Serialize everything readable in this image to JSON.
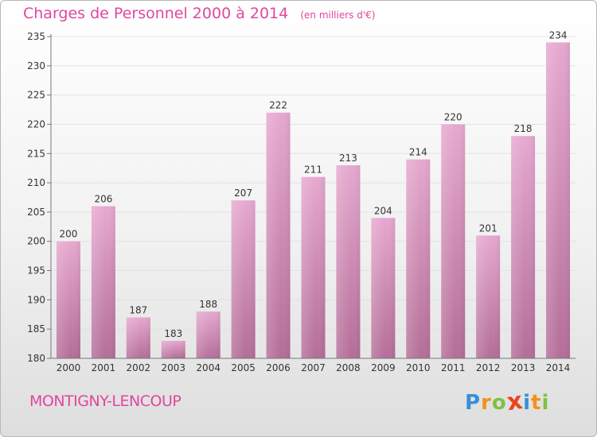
{
  "chart_data": {
    "type": "bar",
    "title": "Charges de Personnel 2000 à 2014",
    "subtitle": "(en milliers d'€)",
    "categories": [
      "2000",
      "2001",
      "2002",
      "2003",
      "2004",
      "2005",
      "2006",
      "2007",
      "2008",
      "2009",
      "2010",
      "2011",
      "2012",
      "2013",
      "2014"
    ],
    "values": [
      200,
      206,
      187,
      183,
      188,
      207,
      222,
      211,
      213,
      204,
      214,
      220,
      201,
      218,
      234
    ],
    "ylim": [
      180,
      235
    ],
    "yticks": [
      180,
      185,
      190,
      195,
      200,
      205,
      210,
      215,
      220,
      225,
      230,
      235
    ],
    "grid": true,
    "bar_color_top": "#e6a8cf",
    "bar_color_bottom": "#b46e98"
  },
  "footer": {
    "city": "MONTIGNY-LENCOUP",
    "logo_letters": [
      "P",
      "r",
      "o",
      "x",
      "i",
      "t",
      "i"
    ],
    "logo_colors": [
      "#3a8fd6",
      "#f0931c",
      "#7cc242",
      "#e8451e",
      "#3a8fd6",
      "#f0931c",
      "#7cc242"
    ],
    "logo_icon": "proxiti-logo-icon"
  },
  "colors": {
    "accent": "#e0479e"
  }
}
